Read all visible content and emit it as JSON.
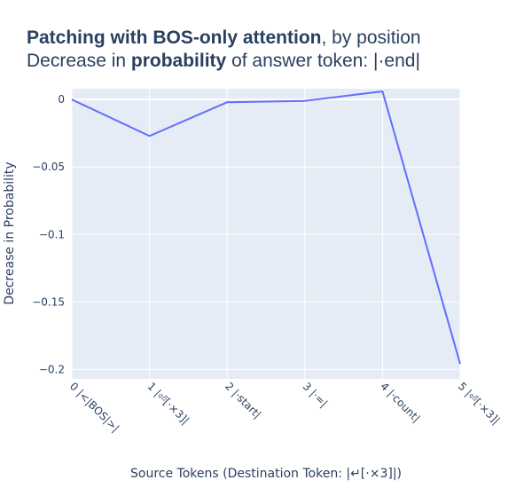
{
  "title": {
    "line1_bold": "Patching with BOS-only attention",
    "line1_rest": ", by position",
    "line2_pre": "Decrease in ",
    "line2_bold": "probability",
    "line2_post": " of answer token: |·end|"
  },
  "chart_data": {
    "type": "line",
    "x": [
      0,
      1,
      2,
      3,
      4,
      5
    ],
    "tick_labels": [
      "0 |<|BOS|>|",
      "1 |⏎[·×3]|",
      "2 |·start|",
      "3 |·=|",
      "4 |·count|",
      "5 |⏎[·×3]|"
    ],
    "series": [
      {
        "name": "Decrease in Probability",
        "values": [
          0.0,
          -0.027,
          -0.002,
          -0.001,
          0.006,
          -0.196
        ]
      }
    ],
    "xlabel": "Source Tokens (Destination Token: |↵[·×3]|)",
    "ylabel": "Decrease in Probability",
    "xlim": [
      0,
      5
    ],
    "ylim": [
      -0.207,
      0.008
    ],
    "yticks": [
      0,
      -0.05,
      -0.1,
      -0.15,
      -0.2
    ],
    "ytick_labels": [
      "0",
      "−0.05",
      "−0.1",
      "−0.15",
      "−0.2"
    ],
    "line_color": "#636efa",
    "plot_bg": "#e5ecf6",
    "grid": true
  }
}
